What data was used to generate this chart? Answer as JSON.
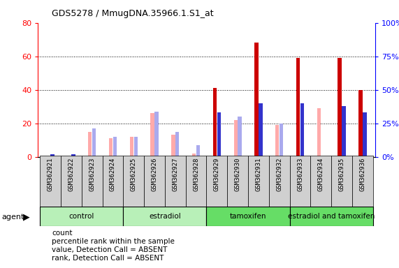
{
  "title": "GDS5278 / MmugDNA.35966.1.S1_at",
  "samples": [
    "GSM362921",
    "GSM362922",
    "GSM362923",
    "GSM362924",
    "GSM362925",
    "GSM362926",
    "GSM362927",
    "GSM362928",
    "GSM362929",
    "GSM362930",
    "GSM362931",
    "GSM362932",
    "GSM362933",
    "GSM362934",
    "GSM362935",
    "GSM362936"
  ],
  "groups": [
    {
      "label": "control",
      "start": 0,
      "end": 3
    },
    {
      "label": "estradiol",
      "start": 4,
      "end": 7
    },
    {
      "label": "tamoxifen",
      "start": 8,
      "end": 11
    },
    {
      "label": "estradiol and tamoxifen",
      "start": 12,
      "end": 15
    }
  ],
  "red_bars": [
    0,
    0,
    0,
    0,
    0,
    0,
    0,
    0,
    41,
    0,
    68,
    0,
    59,
    0,
    59,
    40
  ],
  "blue_bars": [
    2,
    2,
    0,
    0,
    0,
    0,
    0,
    0,
    33,
    0,
    40,
    0,
    40,
    0,
    38,
    33
  ],
  "pink_bars": [
    0,
    0,
    15,
    11,
    12,
    26,
    13,
    2,
    0,
    22,
    0,
    19,
    0,
    29,
    0,
    0
  ],
  "lightblue_bars": [
    2,
    2,
    17,
    12,
    12,
    27,
    15,
    7,
    0,
    24,
    0,
    20,
    0,
    0,
    0,
    0
  ],
  "detection_absent": [
    false,
    false,
    true,
    true,
    true,
    true,
    true,
    true,
    false,
    true,
    false,
    true,
    false,
    true,
    false,
    false
  ],
  "ylim_left": [
    0,
    80
  ],
  "yticks_left": [
    0,
    20,
    40,
    60,
    80
  ],
  "ytick_labels_left": [
    "0",
    "20",
    "40",
    "60",
    "80"
  ],
  "ytick_labels_right": [
    "0%",
    "25%",
    "50%",
    "75%",
    "100%"
  ],
  "red_color": "#cc0000",
  "blue_color": "#3333cc",
  "pink_color": "#ffaaaa",
  "lightblue_color": "#aaaaee",
  "group_color_light": "#b8f0b8",
  "group_color_dark": "#66dd66",
  "sample_bg": "#d0d0d0",
  "legend_items": [
    {
      "label": "count",
      "color": "#cc0000"
    },
    {
      "label": "percentile rank within the sample",
      "color": "#3333cc"
    },
    {
      "label": "value, Detection Call = ABSENT",
      "color": "#ffaaaa"
    },
    {
      "label": "rank, Detection Call = ABSENT",
      "color": "#aaaaee"
    }
  ]
}
